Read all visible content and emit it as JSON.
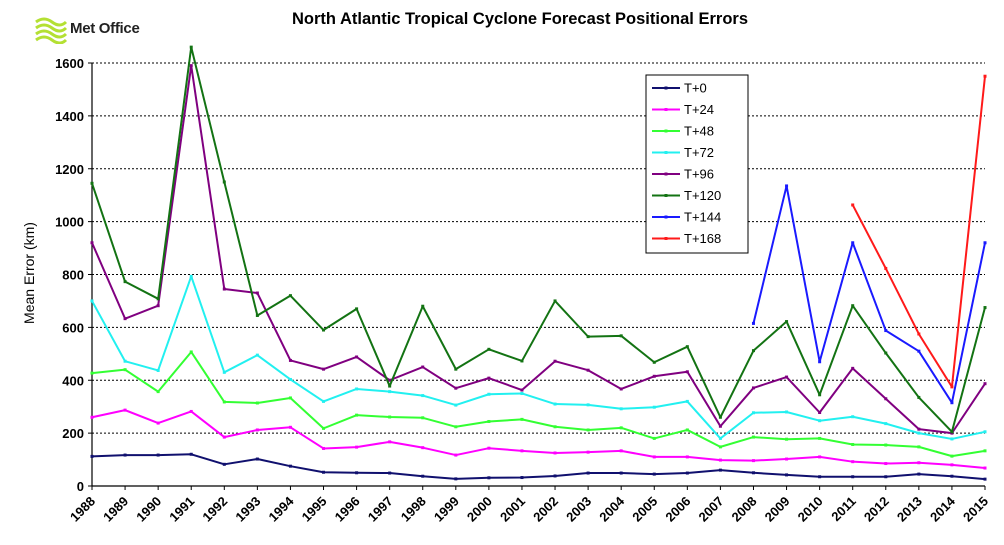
{
  "logo": {
    "text": "Met Office"
  },
  "colors": {
    "T+0": "#10106e",
    "T+24": "#ff00ff",
    "T+48": "#33ff33",
    "T+72": "#22f0f0",
    "T+96": "#800080",
    "T+120": "#137313",
    "T+144": "#1a1aff",
    "T+168": "#ff1a1a"
  },
  "chart_data": {
    "type": "line",
    "title": "North Atlantic Tropical Cyclone Forecast Positional Errors",
    "xlabel": "",
    "ylabel": "Mean Error (km)",
    "ylim": [
      0,
      1600
    ],
    "yticks": [
      0,
      200,
      400,
      600,
      800,
      1000,
      1200,
      1400,
      1600
    ],
    "grid": "horizontal dashed",
    "legend_position": "top-right",
    "x": [
      "1988",
      "1989",
      "1990",
      "1991",
      "1992",
      "1993",
      "1994",
      "1995",
      "1996",
      "1997",
      "1998",
      "1999",
      "2000",
      "2001",
      "2002",
      "2003",
      "2004",
      "2005",
      "2006",
      "2007",
      "2008",
      "2009",
      "2010",
      "2011",
      "2012",
      "2013",
      "2014",
      "2015"
    ],
    "series": [
      {
        "name": "T+0",
        "values": [
          112,
          117,
          117,
          120,
          82,
          102,
          75,
          52,
          50,
          49,
          37,
          27,
          31,
          32,
          38,
          49,
          49,
          45,
          49,
          60,
          50,
          42,
          35,
          35,
          35,
          45,
          37,
          26
        ]
      },
      {
        "name": "T+24",
        "values": [
          260,
          287,
          238,
          282,
          185,
          212,
          222,
          142,
          147,
          167,
          145,
          117,
          143,
          133,
          125,
          128,
          133,
          110,
          110,
          98,
          96,
          102,
          110,
          92,
          85,
          88,
          80,
          68
        ]
      },
      {
        "name": "T+48",
        "values": [
          427,
          440,
          357,
          507,
          318,
          314,
          333,
          218,
          268,
          261,
          258,
          224,
          244,
          252,
          224,
          212,
          220,
          180,
          212,
          148,
          185,
          177,
          180,
          157,
          155,
          148,
          113,
          133
        ]
      },
      {
        "name": "T+72",
        "values": [
          700,
          472,
          437,
          793,
          430,
          495,
          403,
          320,
          367,
          357,
          342,
          306,
          347,
          350,
          310,
          307,
          292,
          298,
          320,
          180,
          277,
          280,
          247,
          262,
          236,
          200,
          178,
          205
        ]
      },
      {
        "name": "T+96",
        "values": [
          920,
          633,
          682,
          1590,
          745,
          730,
          475,
          442,
          488,
          400,
          450,
          370,
          408,
          363,
          472,
          438,
          367,
          415,
          432,
          226,
          371,
          412,
          278,
          445,
          330,
          215,
          200,
          387
        ]
      },
      {
        "name": "T+120",
        "values": [
          1145,
          773,
          708,
          1660,
          1150,
          645,
          720,
          590,
          670,
          378,
          680,
          442,
          517,
          473,
          700,
          565,
          568,
          468,
          527,
          260,
          512,
          622,
          345,
          682,
          503,
          335,
          205,
          675
        ]
      },
      {
        "name": "T+144",
        "values": [
          null,
          null,
          null,
          null,
          null,
          null,
          null,
          null,
          null,
          null,
          null,
          null,
          null,
          null,
          null,
          null,
          null,
          null,
          null,
          null,
          615,
          1135,
          470,
          920,
          588,
          510,
          315,
          920
        ]
      },
      {
        "name": "T+168",
        "values": [
          null,
          null,
          null,
          null,
          null,
          null,
          null,
          null,
          null,
          null,
          null,
          null,
          null,
          null,
          null,
          null,
          null,
          null,
          null,
          null,
          null,
          null,
          null,
          1063,
          823,
          575,
          375,
          1550
        ]
      }
    ]
  }
}
